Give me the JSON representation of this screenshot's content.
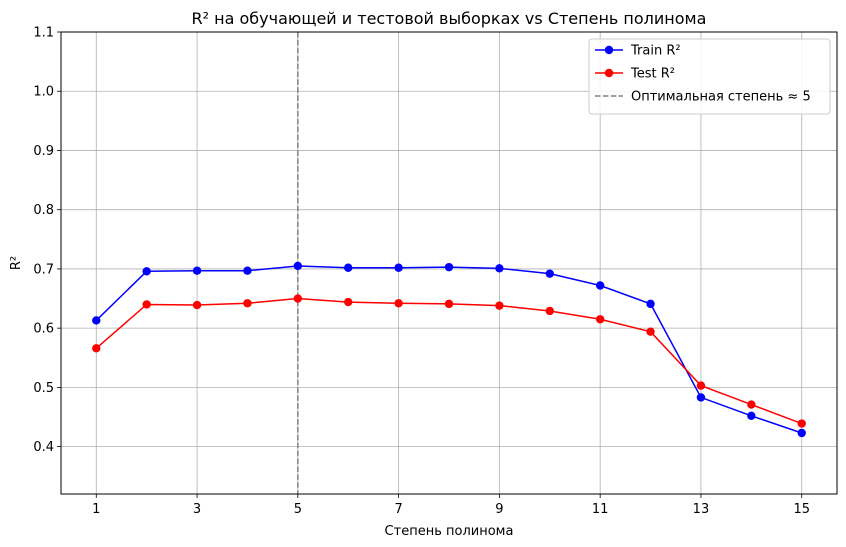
{
  "chart_data": {
    "type": "line",
    "title": "R² на обучающей и тестовой выборках vs Степень полинома",
    "xlabel": "Степень полинома",
    "ylabel": "R²",
    "xlim": [
      0.3,
      15.7
    ],
    "ylim": [
      0.32,
      1.1
    ],
    "xticks": [
      1,
      3,
      5,
      7,
      9,
      11,
      13,
      15
    ],
    "yticks": [
      0.4,
      0.5,
      0.6,
      0.7,
      0.8,
      0.9,
      1.0,
      1.1
    ],
    "grid": true,
    "legend_position": "top-right",
    "x": [
      1,
      2,
      3,
      4,
      5,
      6,
      7,
      8,
      9,
      10,
      11,
      12,
      13,
      14,
      15
    ],
    "series": [
      {
        "name": "Train R²",
        "color": "#0000ff",
        "values": [
          0.613,
          0.696,
          0.697,
          0.697,
          0.705,
          0.702,
          0.702,
          0.703,
          0.701,
          0.692,
          0.672,
          0.641,
          0.483,
          0.452,
          0.423
        ]
      },
      {
        "name": "Test R²",
        "color": "#ff0000",
        "values": [
          0.566,
          0.64,
          0.639,
          0.642,
          0.65,
          0.644,
          0.642,
          0.641,
          0.638,
          0.629,
          0.615,
          0.594,
          0.503,
          0.471,
          0.439
        ]
      }
    ],
    "vline": {
      "x": 5,
      "label": "Оптимальная степень ≈ 5",
      "color": "#808080"
    }
  }
}
